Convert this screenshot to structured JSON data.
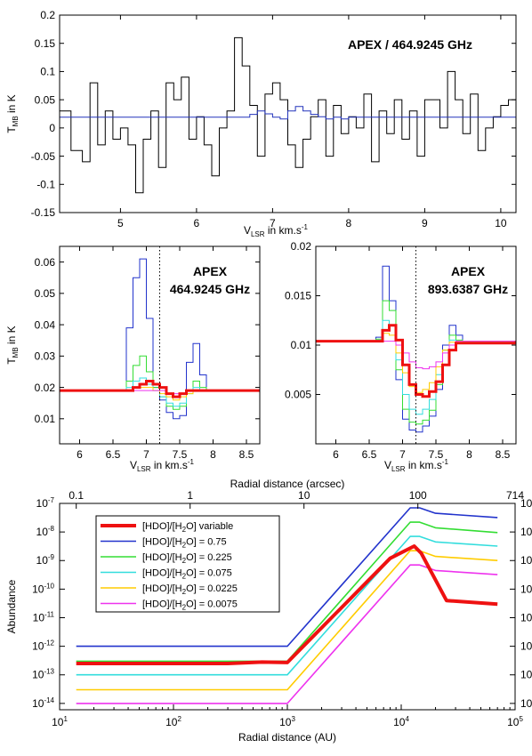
{
  "chart_data": [
    {
      "type": "line",
      "annotation": "APEX / 464.9245 GHz",
      "xlabel": "V",
      "xlabel_sub": "LSR",
      "xlabel_suffix": " in km.s",
      "xlabel_sup": "-1",
      "ylabel": "T",
      "ylabel_sub": "MB",
      "ylabel_suffix": " in K",
      "xlim": [
        4.2,
        10.2
      ],
      "ylim": [
        -0.15,
        0.2
      ],
      "xticks": [
        5,
        6,
        7,
        8,
        9,
        10
      ],
      "yticks": [
        -0.15,
        -0.1,
        -0.05,
        0,
        0.05,
        0.1,
        0.15,
        0.2
      ],
      "ytick_labels": [
        "-0.15",
        "-0.1",
        "-0.05",
        "0",
        "0.05",
        "0.1",
        "0.15",
        "0.2"
      ],
      "series": [
        {
          "color": "#000000",
          "style": "step",
          "x": [
            4.2,
            4.35,
            4.5,
            4.6,
            4.7,
            4.8,
            4.9,
            5.0,
            5.1,
            5.2,
            5.3,
            5.4,
            5.5,
            5.6,
            5.7,
            5.8,
            5.9,
            6.0,
            6.1,
            6.2,
            6.3,
            6.4,
            6.5,
            6.6,
            6.7,
            6.8,
            6.9,
            7.0,
            7.1,
            7.2,
            7.3,
            7.4,
            7.5,
            7.6,
            7.7,
            7.8,
            7.9,
            8.0,
            8.1,
            8.2,
            8.3,
            8.4,
            8.5,
            8.6,
            8.7,
            8.8,
            8.9,
            9.0,
            9.1,
            9.2,
            9.3,
            9.4,
            9.5,
            9.6,
            9.7,
            9.8,
            9.9,
            10.0,
            10.1
          ],
          "y": [
            0.03,
            -0.04,
            -0.06,
            0.08,
            -0.03,
            0.03,
            -0.02,
            0.0,
            -0.03,
            -0.115,
            -0.02,
            0.03,
            -0.07,
            0.08,
            0.05,
            0.09,
            -0.02,
            0.02,
            -0.03,
            -0.085,
            0.0,
            0.03,
            0.16,
            0.11,
            0.04,
            -0.05,
            0.06,
            0.08,
            0.05,
            -0.03,
            -0.07,
            -0.02,
            0.02,
            0.05,
            -0.05,
            0.04,
            -0.01,
            0.02,
            0.0,
            0.06,
            -0.06,
            0.03,
            -0.01,
            0.05,
            -0.02,
            0.03,
            -0.05,
            0.05,
            0.05,
            0.0,
            0.1,
            0.05,
            -0.01,
            0.06,
            -0.04,
            0.0,
            0.02,
            0.04,
            0.05
          ]
        },
        {
          "color": "#2233bb",
          "style": "step",
          "x": [
            4.2,
            6.6,
            6.7,
            6.8,
            6.9,
            7.0,
            7.1,
            7.2,
            7.3,
            7.4,
            7.5,
            7.6,
            7.7,
            7.8,
            7.9,
            8.0,
            10.2
          ],
          "y": [
            0.019,
            0.019,
            0.024,
            0.03,
            0.025,
            0.019,
            0.016,
            0.03,
            0.038,
            0.03,
            0.024,
            0.02,
            0.016,
            0.019,
            0.016,
            0.019,
            0.019
          ]
        }
      ]
    },
    {
      "type": "line",
      "annotation_lines": [
        "APEX",
        "464.9245 GHz"
      ],
      "xlabel": "V",
      "xlabel_sub": "LSR",
      "xlabel_suffix": " in km.s",
      "xlabel_sup": "-1",
      "ylabel": "T",
      "ylabel_sub": "MB",
      "ylabel_suffix": " in K",
      "xlim": [
        5.7,
        8.7
      ],
      "ylim": [
        0.002,
        0.065
      ],
      "xticks": [
        6,
        6.5,
        7,
        7.5,
        8,
        8.5
      ],
      "xtick_labels": [
        "6",
        "6.5",
        "7",
        "7.5",
        "8",
        "8.5"
      ],
      "yticks": [
        0.01,
        0.02,
        0.03,
        0.04,
        0.05,
        0.06
      ],
      "ytick_labels": [
        "0.01",
        "0.02",
        "0.03",
        "0.04",
        "0.05",
        "0.06"
      ],
      "vline": 7.2,
      "series": [
        {
          "color": "#2233cc",
          "style": "step",
          "x": [
            5.7,
            6.7,
            6.8,
            6.9,
            7.0,
            7.1,
            7.2,
            7.3,
            7.4,
            7.5,
            7.6,
            7.7,
            7.8,
            7.9,
            8.7
          ],
          "y": [
            0.019,
            0.039,
            0.055,
            0.061,
            0.042,
            0.02,
            0.016,
            0.012,
            0.01,
            0.011,
            0.028,
            0.034,
            0.024,
            0.019,
            0.019
          ]
        },
        {
          "color": "#33dd33",
          "style": "step",
          "x": [
            5.7,
            6.7,
            6.8,
            6.9,
            7.0,
            7.1,
            7.2,
            7.3,
            7.4,
            7.5,
            7.6,
            7.7,
            7.8,
            7.9,
            8.7
          ],
          "y": [
            0.019,
            0.022,
            0.027,
            0.03,
            0.025,
            0.02,
            0.017,
            0.014,
            0.013,
            0.014,
            0.019,
            0.022,
            0.02,
            0.019,
            0.019
          ]
        },
        {
          "color": "#33dddd",
          "style": "step",
          "x": [
            5.7,
            6.7,
            6.8,
            6.9,
            7.0,
            7.1,
            7.2,
            7.3,
            7.4,
            7.5,
            7.6,
            7.7,
            7.8,
            7.9,
            8.7
          ],
          "y": [
            0.019,
            0.02,
            0.022,
            0.023,
            0.021,
            0.019,
            0.017,
            0.015,
            0.014,
            0.015,
            0.018,
            0.02,
            0.019,
            0.019,
            0.019
          ]
        },
        {
          "color": "#ffcc00",
          "style": "step",
          "x": [
            5.7,
            6.7,
            6.8,
            6.9,
            7.0,
            7.1,
            7.2,
            7.3,
            7.4,
            7.5,
            7.6,
            7.7,
            7.8,
            7.9,
            8.7
          ],
          "y": [
            0.019,
            0.019,
            0.02,
            0.02,
            0.02,
            0.019,
            0.018,
            0.017,
            0.016,
            0.017,
            0.018,
            0.019,
            0.019,
            0.019,
            0.019
          ]
        },
        {
          "color": "#ee33ee",
          "style": "step",
          "x": [
            5.7,
            6.9,
            7.0,
            7.1,
            7.2,
            7.3,
            7.4,
            7.5,
            7.6,
            7.7,
            8.7
          ],
          "y": [
            0.019,
            0.019,
            0.019,
            0.019,
            0.019,
            0.018,
            0.018,
            0.018,
            0.019,
            0.019,
            0.019
          ]
        },
        {
          "color": "#ee1111",
          "style": "step",
          "width": 3,
          "x": [
            5.7,
            6.7,
            6.8,
            6.9,
            7.0,
            7.1,
            7.2,
            7.3,
            7.4,
            7.5,
            7.6,
            7.7,
            7.8,
            8.7
          ],
          "y": [
            0.019,
            0.019,
            0.02,
            0.021,
            0.022,
            0.021,
            0.02,
            0.018,
            0.017,
            0.018,
            0.019,
            0.019,
            0.019,
            0.019
          ]
        }
      ]
    },
    {
      "type": "line",
      "annotation_lines": [
        "APEX",
        "893.6387 GHz"
      ],
      "xlabel": "V",
      "xlabel_sub": "LSR",
      "xlabel_suffix": " in km.s",
      "xlabel_sup": "-1",
      "xlim": [
        5.7,
        8.7
      ],
      "ylim": [
        0.0,
        0.02
      ],
      "xticks": [
        6,
        6.5,
        7,
        7.5,
        8,
        8.5
      ],
      "xtick_labels": [
        "6",
        "6.5",
        "7",
        "7.5",
        "8",
        "8.5"
      ],
      "yticks": [
        0.005,
        0.01,
        0.015,
        0.02
      ],
      "ytick_labels": [
        "0.005",
        "0.01",
        "0.015",
        "0.02"
      ],
      "vline": 7.2,
      "series": [
        {
          "color": "#2233cc",
          "style": "step",
          "x": [
            5.7,
            6.6,
            6.7,
            6.8,
            6.9,
            7.0,
            7.1,
            7.2,
            7.3,
            7.4,
            7.5,
            7.6,
            7.7,
            7.8,
            7.9,
            8.7
          ],
          "y": [
            0.0104,
            0.0108,
            0.018,
            0.0145,
            0.0065,
            0.0025,
            0.0014,
            0.0012,
            0.0018,
            0.0028,
            0.0055,
            0.01,
            0.012,
            0.011,
            0.0104,
            0.0104
          ]
        },
        {
          "color": "#33dd33",
          "style": "step",
          "x": [
            5.7,
            6.6,
            6.7,
            6.8,
            6.9,
            7.0,
            7.1,
            7.2,
            7.3,
            7.4,
            7.5,
            7.6,
            7.7,
            7.8,
            7.9,
            8.7
          ],
          "y": [
            0.0104,
            0.0106,
            0.0145,
            0.0135,
            0.0075,
            0.0035,
            0.0022,
            0.002,
            0.0024,
            0.0034,
            0.006,
            0.0095,
            0.011,
            0.0105,
            0.0104,
            0.0104
          ]
        },
        {
          "color": "#33dddd",
          "style": "step",
          "x": [
            5.7,
            6.6,
            6.7,
            6.8,
            6.9,
            7.0,
            7.1,
            7.2,
            7.3,
            7.4,
            7.5,
            7.6,
            7.7,
            7.8,
            7.9,
            8.7
          ],
          "y": [
            0.0104,
            0.0105,
            0.0125,
            0.012,
            0.0085,
            0.005,
            0.0035,
            0.003,
            0.0035,
            0.0045,
            0.007,
            0.0095,
            0.0105,
            0.0104,
            0.0104,
            0.0104
          ]
        },
        {
          "color": "#ffcc00",
          "style": "step",
          "x": [
            5.7,
            6.6,
            6.7,
            6.8,
            6.9,
            7.0,
            7.1,
            7.2,
            7.3,
            7.4,
            7.5,
            7.6,
            7.7,
            7.8,
            7.9,
            8.7
          ],
          "y": [
            0.0104,
            0.0104,
            0.0112,
            0.011,
            0.0092,
            0.0072,
            0.0058,
            0.0052,
            0.0055,
            0.0062,
            0.0078,
            0.0095,
            0.0103,
            0.0104,
            0.0104,
            0.0104
          ]
        },
        {
          "color": "#ee33ee",
          "style": "step",
          "x": [
            5.7,
            6.8,
            6.9,
            7.0,
            7.1,
            7.2,
            7.3,
            7.4,
            7.5,
            7.6,
            7.7,
            7.8,
            8.7
          ],
          "y": [
            0.0104,
            0.0104,
            0.01,
            0.0092,
            0.0083,
            0.0077,
            0.0076,
            0.0078,
            0.0083,
            0.0092,
            0.01,
            0.0104,
            0.0104
          ]
        },
        {
          "color": "#ee1111",
          "style": "step",
          "width": 3,
          "x": [
            5.7,
            6.6,
            6.7,
            6.8,
            6.9,
            7.0,
            7.1,
            7.2,
            7.3,
            7.4,
            7.5,
            7.6,
            7.7,
            7.8,
            8.7
          ],
          "y": [
            0.0104,
            0.0104,
            0.0115,
            0.012,
            0.0105,
            0.008,
            0.006,
            0.005,
            0.0048,
            0.0053,
            0.0063,
            0.008,
            0.0095,
            0.0102,
            0.0104
          ]
        }
      ]
    },
    {
      "type": "line",
      "xlabel": "Radial distance (AU)",
      "top_xlabel": "Radial distance (arcsec)",
      "ylabel": "Abundance",
      "xscale": "log",
      "yscale": "log",
      "xlim": [
        10,
        100000
      ],
      "ylim": [
        6e-15,
        1e-07
      ],
      "xticks": [
        10,
        100,
        1000,
        10000,
        100000
      ],
      "xtick_base": "10",
      "xtick_exps": [
        "1",
        "2",
        "3",
        "4",
        "5"
      ],
      "yticks": [
        1e-14,
        1e-13,
        1e-12,
        1e-11,
        1e-10,
        1e-09,
        1e-08,
        1e-07
      ],
      "ytick_base": "10",
      "ytick_exps": [
        "-14",
        "-13",
        "-12",
        "-11",
        "-10",
        "-9",
        "-8",
        "-7"
      ],
      "top_ticks": [
        {
          "au": 14,
          "label": "0.1"
        },
        {
          "au": 140,
          "label": "1"
        },
        {
          "au": 1400,
          "label": "10"
        },
        {
          "au": 14000,
          "label": "100"
        },
        {
          "au": 100000,
          "label": "714"
        }
      ],
      "legend": {
        "placement": "top-left",
        "entries": [
          {
            "color": "#ee1111",
            "width": 4,
            "parts": [
              "[HDO]/[H",
              "2",
              "O] variable"
            ]
          },
          {
            "color": "#2233cc",
            "width": 1.6,
            "parts": [
              "[HDO]/[H",
              "2",
              "O] = 0.75"
            ]
          },
          {
            "color": "#33dd33",
            "width": 1.6,
            "parts": [
              "[HDO]/[H",
              "2",
              "O] = 0.225"
            ]
          },
          {
            "color": "#33dddd",
            "width": 1.6,
            "parts": [
              "[HDO]/[H",
              "2",
              "O] = 0.075"
            ]
          },
          {
            "color": "#ffcc00",
            "width": 1.6,
            "parts": [
              "[HDO]/[H",
              "2",
              "O] = 0.0225"
            ]
          },
          {
            "color": "#ee33ee",
            "width": 1.6,
            "parts": [
              "[HDO]/[H",
              "2",
              "O] = 0.0075"
            ]
          }
        ]
      },
      "series": [
        {
          "color": "#2233cc",
          "x": [
            14,
            1000,
            12000,
            14500,
            20000,
            70000
          ],
          "y": [
            1e-12,
            1e-12,
            7e-08,
            7e-08,
            4.5e-08,
            3.2e-08
          ]
        },
        {
          "color": "#33dd33",
          "x": [
            14,
            1000,
            12000,
            14500,
            20000,
            70000
          ],
          "y": [
            3e-13,
            3e-13,
            2.2e-08,
            2.2e-08,
            1.4e-08,
            9.5e-09
          ]
        },
        {
          "color": "#33dddd",
          "x": [
            14,
            1000,
            12000,
            14500,
            20000,
            70000
          ],
          "y": [
            1e-13,
            1e-13,
            7e-09,
            7e-09,
            4.5e-09,
            3.2e-09
          ]
        },
        {
          "color": "#ffcc00",
          "x": [
            14,
            1000,
            12000,
            14500,
            20000,
            70000
          ],
          "y": [
            3e-14,
            3e-14,
            2.2e-09,
            2.2e-09,
            1.4e-09,
            1e-09
          ]
        },
        {
          "color": "#ee33ee",
          "x": [
            14,
            1000,
            12000,
            14500,
            20000,
            70000
          ],
          "y": [
            1e-14,
            1e-14,
            7e-10,
            7e-10,
            4.5e-10,
            3.2e-10
          ]
        },
        {
          "color": "#ee1111",
          "width": 4,
          "x": [
            14,
            150,
            300,
            600,
            1000,
            8000,
            13000,
            15000,
            25000,
            70000
          ],
          "y": [
            2.5e-13,
            2.5e-13,
            2.5e-13,
            2.8e-13,
            2.7e-13,
            1.2e-09,
            3.2e-09,
            1.8e-09,
            4e-11,
            3e-11
          ]
        }
      ]
    }
  ]
}
